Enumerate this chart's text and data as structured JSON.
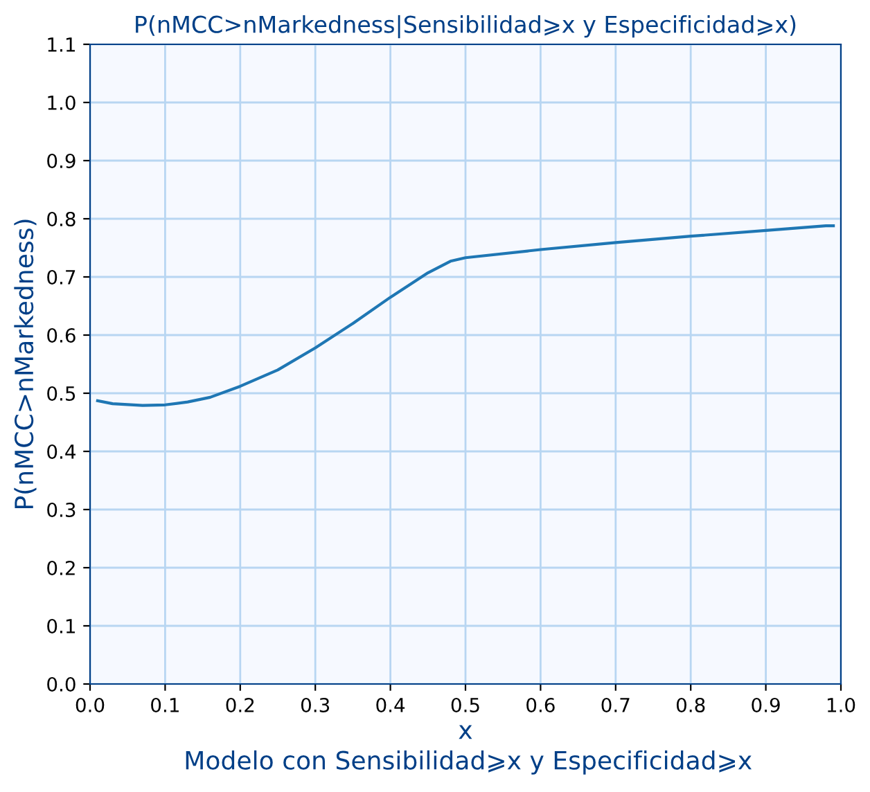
{
  "chart_data": {
    "type": "line",
    "title": "P(nMCC>nMarkedness|Sensibilidad⩾x y Especificidad⩾x)",
    "xlabel": "x",
    "ylabel": "P(nMCC>nMarkedness)",
    "annotations": [
      "Modelo con Sensibilidad⩾x y Especificidad⩾x"
    ],
    "x": [
      0.01,
      0.03,
      0.07,
      0.1,
      0.13,
      0.16,
      0.2,
      0.25,
      0.3,
      0.35,
      0.4,
      0.45,
      0.48,
      0.5,
      0.6,
      0.7,
      0.8,
      0.9,
      0.98,
      0.99
    ],
    "series": [
      {
        "color": "#1f77b4",
        "values": [
          0.487,
          0.482,
          0.479,
          0.48,
          0.485,
          0.493,
          0.512,
          0.54,
          0.578,
          0.62,
          0.665,
          0.707,
          0.727,
          0.733,
          0.747,
          0.759,
          0.77,
          0.78,
          0.788,
          0.788
        ]
      }
    ],
    "xlim": [
      0,
      1
    ],
    "xticks": [
      {
        "value": 0,
        "label": "0.0"
      },
      0.1,
      0.2,
      0.3,
      0.4,
      0.5,
      0.6,
      0.7,
      0.8,
      0.9,
      {
        "value": 1,
        "label": "1.0"
      }
    ],
    "ylim": [
      0,
      1.1
    ],
    "yticks": [
      {
        "value": 0,
        "label": "0.0"
      },
      0.1,
      0.2,
      0.3,
      0.4,
      0.5,
      0.6,
      0.7,
      0.8,
      0.9,
      {
        "value": 1,
        "label": "1.0"
      },
      {
        "value": 1.1,
        "label": "1.1"
      }
    ],
    "grid": true,
    "legend": false,
    "marker": "none",
    "line_style": "solid"
  }
}
